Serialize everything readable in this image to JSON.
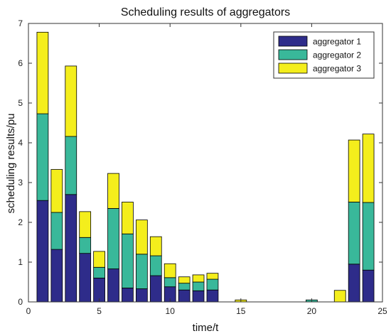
{
  "chart_data": {
    "type": "bar",
    "stacked": true,
    "title": "Scheduling results of aggregators",
    "xlabel": "time/t",
    "ylabel": "scheduling results/pu",
    "xlim": [
      0,
      25
    ],
    "ylim": [
      0,
      7
    ],
    "xticks": [
      0,
      5,
      10,
      15,
      20,
      25
    ],
    "yticks": [
      0,
      1,
      2,
      3,
      4,
      5,
      6,
      7
    ],
    "grid": false,
    "legend_position": "top-right",
    "x": [
      1,
      2,
      3,
      4,
      5,
      6,
      7,
      8,
      9,
      10,
      11,
      12,
      13,
      14,
      15,
      16,
      17,
      18,
      19,
      20,
      21,
      22,
      23,
      24
    ],
    "series": [
      {
        "name": "aggregator 1",
        "color": "#2e2c8a",
        "values": [
          2.55,
          1.32,
          2.7,
          1.22,
          0.6,
          0.83,
          0.35,
          0.33,
          0.66,
          0.38,
          0.3,
          0.28,
          0.3,
          0,
          0,
          0,
          0,
          0,
          0,
          0,
          0,
          0,
          0.95,
          0.8
        ]
      },
      {
        "name": "aggregator 2",
        "color": "#39b89a",
        "values": [
          2.18,
          0.93,
          1.46,
          0.4,
          0.27,
          1.52,
          1.36,
          0.87,
          0.5,
          0.23,
          0.17,
          0.22,
          0.27,
          0,
          0,
          0,
          0,
          0,
          0,
          0.05,
          0,
          0,
          1.56,
          1.7
        ]
      },
      {
        "name": "aggregator 3",
        "color": "#f4ee1c",
        "values": [
          2.05,
          1.08,
          1.77,
          0.65,
          0.4,
          0.88,
          0.8,
          0.86,
          0.48,
          0.35,
          0.16,
          0.18,
          0.15,
          0,
          0.05,
          0,
          0,
          0,
          0,
          0,
          0,
          0.29,
          1.56,
          1.72
        ]
      }
    ]
  }
}
